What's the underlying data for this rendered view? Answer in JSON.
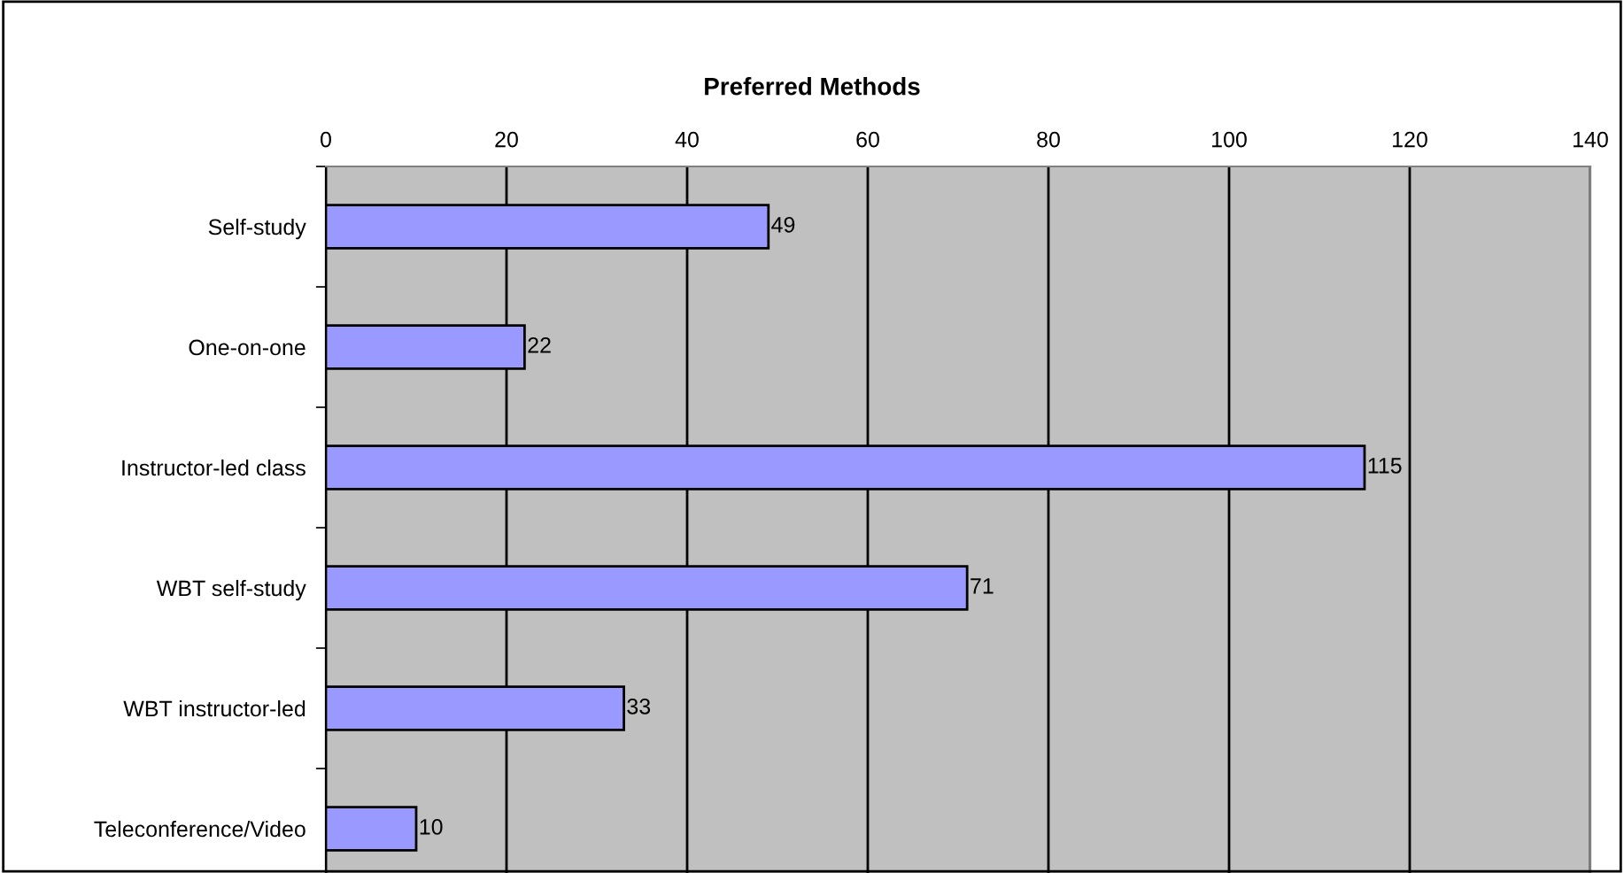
{
  "chart_data": {
    "type": "bar",
    "orientation": "horizontal",
    "title": "Preferred Methods",
    "categories": [
      "Self-study",
      "One-on-one",
      "Instructor-led class",
      "WBT self-study",
      "WBT instructor-led",
      "Teleconference/Video"
    ],
    "values": [
      49,
      22,
      115,
      71,
      33,
      10
    ],
    "color": "#9999ff",
    "xlim": [
      0,
      140
    ],
    "xticks": [
      0,
      20,
      40,
      60,
      80,
      100,
      120,
      140
    ],
    "grid": "x",
    "data_labels": true
  }
}
